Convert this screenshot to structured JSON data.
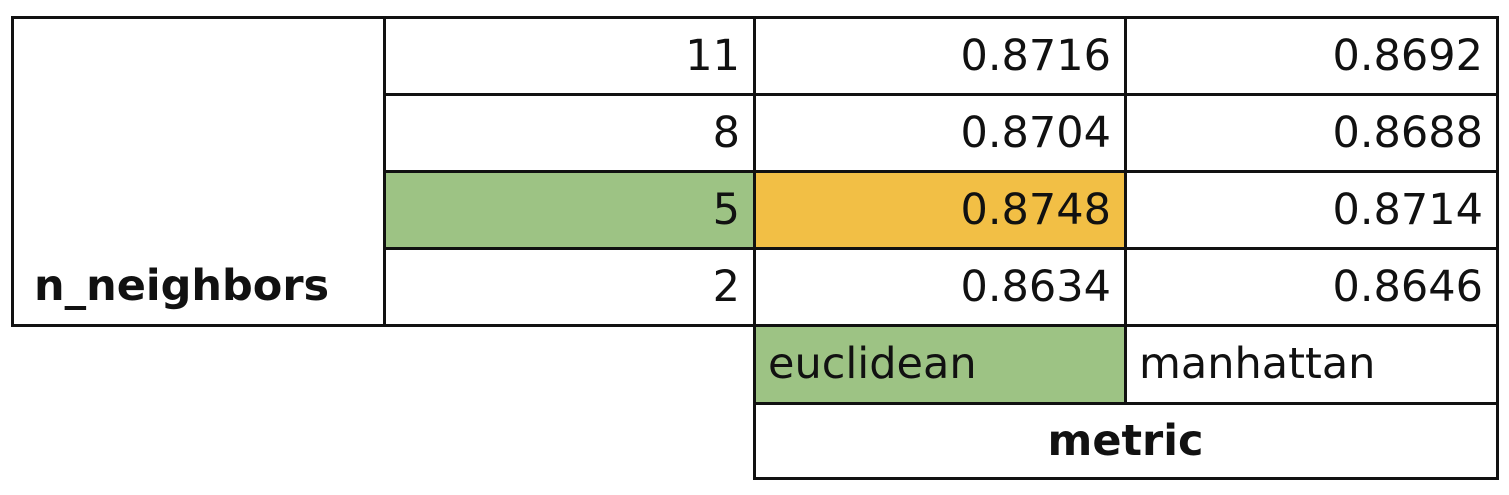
{
  "chart_data": {
    "type": "table",
    "row_axis_label": "n_neighbors",
    "column_axis_label": "metric",
    "rows": [
      "11",
      "8",
      "5",
      "2"
    ],
    "columns": [
      "euclidean",
      "manhattan"
    ],
    "values": [
      [
        "0.8716",
        "0.8692"
      ],
      [
        "0.8704",
        "0.8688"
      ],
      [
        "0.8748",
        "0.8714"
      ],
      [
        "0.8634",
        "0.8646"
      ]
    ],
    "highlights": {
      "selected_row": "5",
      "selected_column": "euclidean",
      "best_value": "0.8748"
    },
    "colors": {
      "selected_header": "#9dc384",
      "best_value": "#f2bf45",
      "grid_line": "#111111",
      "background": "#ffffff"
    }
  }
}
